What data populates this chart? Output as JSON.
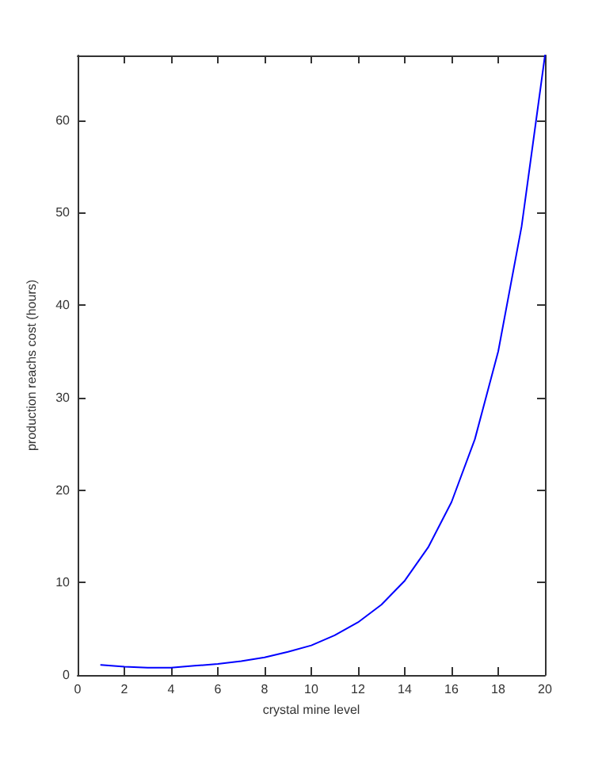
{
  "chart_data": {
    "type": "line",
    "xlabel": "crystal mine level",
    "ylabel": "production reachs cost (hours)",
    "x": [
      1,
      2,
      3,
      4,
      5,
      6,
      7,
      8,
      9,
      10,
      11,
      12,
      13,
      14,
      15,
      16,
      17,
      18,
      19,
      20
    ],
    "series": [
      {
        "color": "#0000ff",
        "values": [
          1.1,
          0.9,
          0.8,
          0.8,
          1,
          1.2,
          1.5,
          1.9,
          2.5,
          3.2,
          4.3,
          5.7,
          7.6,
          10.2,
          13.8,
          18.7,
          25.5,
          35,
          48.5,
          67
        ]
      }
    ],
    "xlim": [
      0,
      20
    ],
    "xticks": [
      0,
      2,
      4,
      6,
      8,
      10,
      12,
      14,
      16,
      18,
      20
    ],
    "ylim": [
      0,
      67
    ],
    "yticks": [
      0,
      10,
      20,
      30,
      40,
      50,
      60
    ],
    "grid": false,
    "marker": "none",
    "line_style": "solid"
  }
}
